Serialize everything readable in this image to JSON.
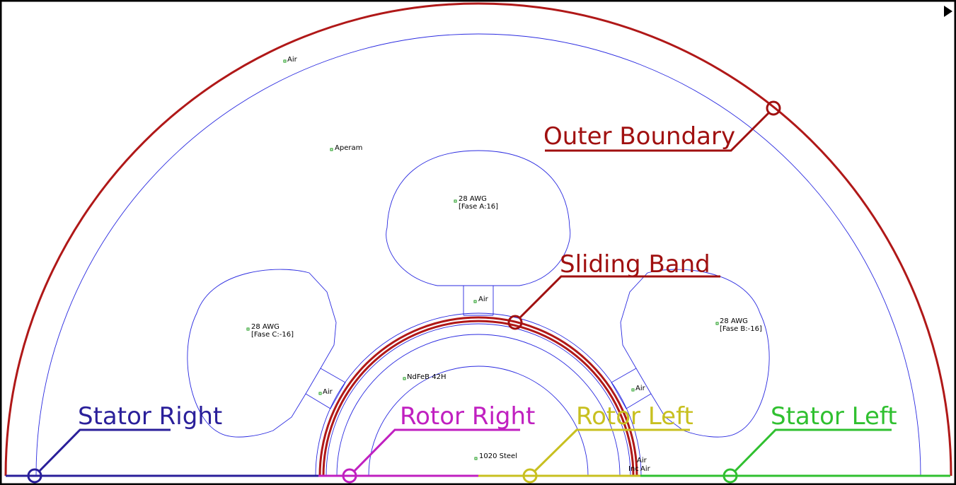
{
  "annotations": [
    {
      "label": "Outer Boundary"
    },
    {
      "label": "Sliding Band"
    },
    {
      "label": "Stator Right"
    },
    {
      "label": "Rotor Right"
    },
    {
      "label": "Rotor Left"
    },
    {
      "label": "Stator Left"
    }
  ],
  "materials": [
    {
      "text": "Air"
    },
    {
      "text": "Aperam"
    },
    {
      "text": "28 AWG",
      "circuit": "[Fase A:16]"
    },
    {
      "text": "Air"
    },
    {
      "text": "28 AWG",
      "circuit": "[Fase C:-16]"
    },
    {
      "text": "28 AWG",
      "circuit": "[Fase B:-16]"
    },
    {
      "text": "Air"
    },
    {
      "text": "Air"
    },
    {
      "text": "NdFeB 42H"
    },
    {
      "text": "1020 Steel"
    },
    {
      "text": "Air"
    },
    {
      "text": "Inc"
    },
    {
      "text": "Air"
    }
  ]
}
